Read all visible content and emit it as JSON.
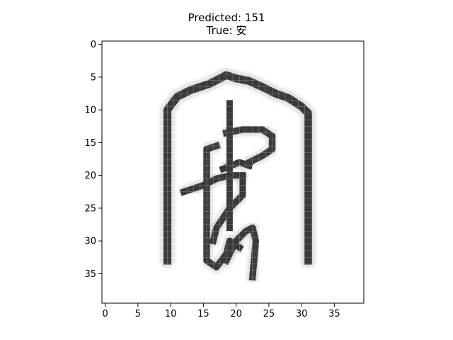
{
  "figure": {
    "title_line1": "Predicted: 151",
    "title_line2": "True: 安"
  },
  "image": {
    "type": "grayscale-glyph",
    "resolution": [
      40,
      40
    ],
    "colormap": "gray_r",
    "x_ticks": [
      "0",
      "5",
      "10",
      "15",
      "20",
      "25",
      "30",
      "35"
    ],
    "y_ticks": [
      "0",
      "5",
      "10",
      "15",
      "20",
      "25",
      "30",
      "35"
    ],
    "strokes": [
      {
        "points": [
          [
            9.5,
            33
          ],
          [
            9.5,
            10
          ],
          [
            11,
            8
          ],
          [
            13,
            7
          ],
          [
            16,
            6
          ],
          [
            18.5,
            4.7
          ],
          [
            20,
            5.2
          ],
          [
            22,
            5.6
          ],
          [
            24,
            6.5
          ],
          [
            26,
            7.5
          ],
          [
            28,
            8.2
          ],
          [
            30,
            9.5
          ],
          [
            31,
            10.5
          ],
          [
            31,
            33
          ]
        ],
        "width": 1.2
      },
      {
        "points": [
          [
            19,
            9
          ],
          [
            19,
            28
          ]
        ],
        "width": 1.0
      },
      {
        "points": [
          [
            18.5,
            13.5
          ],
          [
            21,
            13
          ],
          [
            24,
            13
          ],
          [
            25.5,
            14
          ],
          [
            25.5,
            16
          ],
          [
            24,
            17
          ],
          [
            22,
            18
          ]
        ],
        "width": 1.0
      },
      {
        "points": [
          [
            17,
            15.5
          ],
          [
            15.5,
            16
          ],
          [
            15.5,
            33
          ],
          [
            17,
            34
          ],
          [
            18.5,
            32
          ],
          [
            19,
            30
          ],
          [
            20.5,
            31
          ]
        ],
        "width": 1.0
      },
      {
        "points": [
          [
            18,
            19
          ],
          [
            20.5,
            18
          ],
          [
            22,
            18.5
          ]
        ],
        "width": 1.0
      },
      {
        "points": [
          [
            12,
            22.5
          ],
          [
            13.5,
            22
          ],
          [
            15,
            21.5
          ],
          [
            17,
            20.5
          ],
          [
            19,
            20
          ],
          [
            21,
            20
          ]
        ],
        "width": 1.0
      },
      {
        "points": [
          [
            21,
            20
          ],
          [
            21,
            23
          ],
          [
            19,
            25
          ],
          [
            17,
            28
          ],
          [
            16.5,
            30
          ]
        ],
        "width": 1.0
      },
      {
        "points": [
          [
            18.5,
            33
          ],
          [
            20,
            30
          ],
          [
            21.5,
            28.5
          ],
          [
            22.5,
            28
          ],
          [
            23,
            30
          ],
          [
            22.5,
            35.5
          ]
        ],
        "width": 1.0
      }
    ]
  }
}
